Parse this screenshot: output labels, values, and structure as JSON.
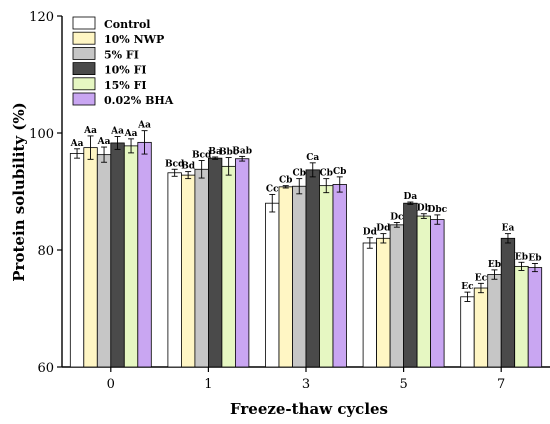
{
  "chart_data": {
    "type": "bar",
    "xlabel": "Freeze-thaw cycles",
    "ylabel": "Protein solubility (%)",
    "ylim": [
      60,
      120
    ],
    "yticks": [
      60,
      80,
      100,
      120
    ],
    "categories": [
      "0",
      "1",
      "3",
      "5",
      "7"
    ],
    "legend_position": "top-left",
    "series": [
      {
        "name": "Control",
        "color": "#ffffff",
        "values": [
          96.5,
          93.2,
          88.0,
          81.2,
          72.0
        ],
        "errors": [
          0.8,
          0.6,
          1.5,
          0.9,
          0.8
        ],
        "labels": [
          "Aa",
          "Bcd",
          "Cc",
          "Dd",
          "Ec"
        ]
      },
      {
        "name": "10% NWP",
        "color": "#fff6c4",
        "values": [
          97.5,
          92.8,
          90.8,
          82.0,
          73.5
        ],
        "errors": [
          2.0,
          0.6,
          0.2,
          0.8,
          0.8
        ],
        "labels": [
          "Aa",
          "Bd",
          "Cb",
          "Dd",
          "Ec"
        ]
      },
      {
        "name": "5% FI",
        "color": "#c6c6c6",
        "values": [
          96.3,
          93.8,
          90.9,
          84.3,
          75.8
        ],
        "errors": [
          1.3,
          1.5,
          1.3,
          0.4,
          0.8
        ],
        "labels": [
          "Aa",
          "Bcd",
          "Cb",
          "Dc",
          "Eb"
        ]
      },
      {
        "name": "10% FI",
        "color": "#4a4a4a",
        "values": [
          98.3,
          95.7,
          93.7,
          88.0,
          82.0
        ],
        "errors": [
          1.1,
          0.2,
          1.2,
          0.2,
          0.8
        ],
        "labels": [
          "Aa",
          "Ba",
          "Ca",
          "Da",
          "Ea"
        ]
      },
      {
        "name": "15% FI",
        "color": "#e6f7c2",
        "values": [
          97.8,
          94.3,
          91.0,
          85.8,
          77.2
        ],
        "errors": [
          1.2,
          1.5,
          1.2,
          0.4,
          0.7
        ],
        "labels": [
          "Aa",
          "Bbc",
          "Cb",
          "Db",
          "Eb"
        ]
      },
      {
        "name": "0.02% BHA",
        "color": "#c9a6f2",
        "values": [
          98.4,
          95.6,
          91.2,
          85.2,
          77.0
        ],
        "errors": [
          2.0,
          0.4,
          1.3,
          0.8,
          0.7
        ],
        "labels": [
          "Aa",
          "Bab",
          "Cb",
          "Dbc",
          "Eb"
        ]
      }
    ]
  }
}
